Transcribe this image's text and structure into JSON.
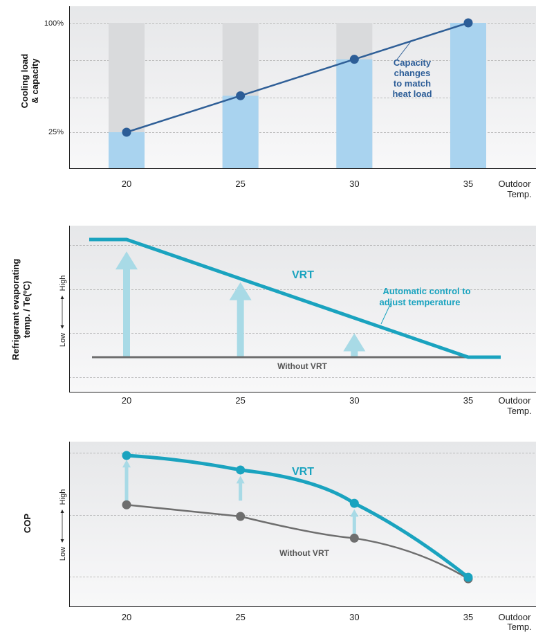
{
  "colors": {
    "panel_bg": "#eeeeef",
    "bar_gray": "#d9dadc",
    "bar_blue": "#a9d3ef",
    "line_navy": "#2f5f97",
    "marker_navy": "#2c5d97",
    "vrt_teal": "#1aa3bf",
    "arrow_light": "#a8dae6",
    "base_gray": "#6e6e6e",
    "grid": "#a9a9a9"
  },
  "chart_data": [
    {
      "type": "bar",
      "ylabel": [
        "Cooling load",
        "& capacity"
      ],
      "xlabel": [
        "Outdoor",
        "Temp."
      ],
      "categories": [
        "20",
        "25",
        "30",
        "35"
      ],
      "y_ticks": [
        "100%",
        "25%"
      ],
      "ylim": [
        0,
        115
      ],
      "bar_max": [
        100,
        100,
        100,
        100
      ],
      "series": [
        {
          "values": [
            25,
            50,
            75,
            100
          ]
        }
      ],
      "line": {
        "x": [
          20,
          25,
          30,
          35
        ],
        "y": [
          25,
          50,
          75,
          100
        ]
      },
      "annotation": [
        "Capacity",
        "changes",
        "to match",
        "heat load"
      ]
    },
    {
      "type": "line",
      "ylabel": [
        "Refrigerant evaporating",
        "temp. / Te(ºC)"
      ],
      "xlabel": [
        "Outdoor",
        "Temp."
      ],
      "y_low": "Low",
      "y_high": "High",
      "categories": [
        "20",
        "25",
        "30",
        "35"
      ],
      "ylim": [
        0,
        10
      ],
      "series": [
        {
          "name": "VRT",
          "x": [
            18.5,
            20,
            35,
            36.5
          ],
          "y": [
            9.2,
            9.2,
            2.3,
            2.3
          ]
        },
        {
          "name": "Without VRT",
          "x": [
            18.5,
            36.5
          ],
          "y": [
            2.3,
            2.3
          ]
        }
      ],
      "arrows": [
        {
          "x": 20,
          "from": 2.3,
          "to": 8.5
        },
        {
          "x": 25,
          "from": 2.3,
          "to": 6.7
        },
        {
          "x": 30,
          "from": 2.3,
          "to": 3.7
        }
      ],
      "annotation": [
        "Automatic control to",
        "adjust temperature"
      ]
    },
    {
      "type": "line",
      "ylabel": [
        "COP"
      ],
      "xlabel": [
        "Outdoor",
        "Temp."
      ],
      "y_low": "Low",
      "y_high": "High",
      "categories": [
        "20",
        "25",
        "30",
        "35"
      ],
      "ylim": [
        0,
        10
      ],
      "series": [
        {
          "name": "VRT",
          "x": [
            20,
            25,
            30,
            35
          ],
          "y": [
            9.2,
            8.2,
            5.9,
            0.8
          ]
        },
        {
          "name": "Without VRT",
          "x": [
            20,
            25,
            30,
            35
          ],
          "y": [
            5.8,
            5.0,
            3.5,
            0.7
          ]
        }
      ],
      "arrows": [
        {
          "x": 20,
          "from": 5.8,
          "to": 8.9
        },
        {
          "x": 25,
          "from": 5.8,
          "to": 7.8
        },
        {
          "x": 30,
          "from": 3.5,
          "to": 5.5
        }
      ]
    }
  ]
}
